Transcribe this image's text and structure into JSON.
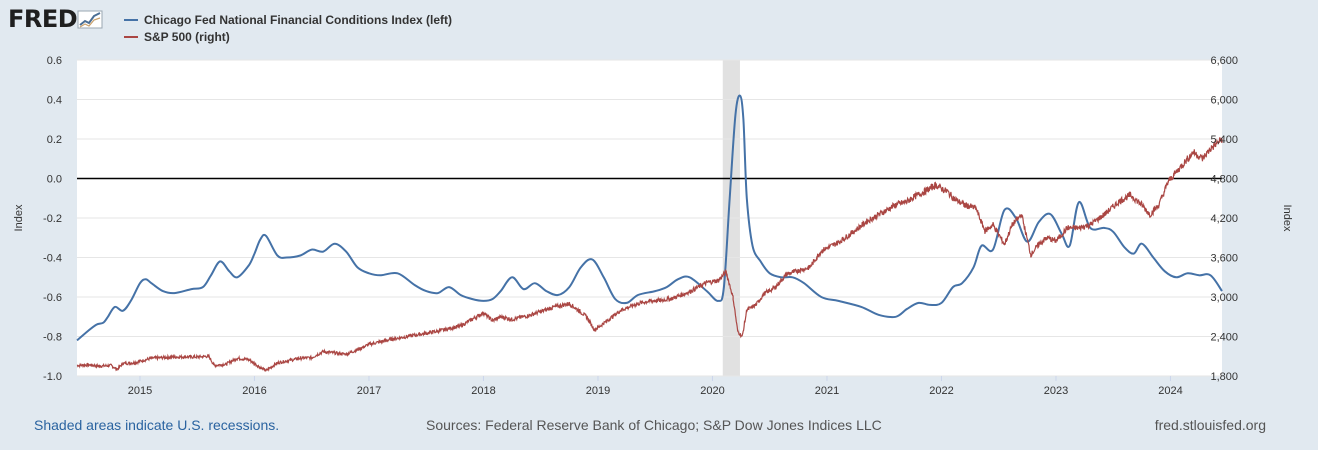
{
  "header": {
    "logo_text": "FRED",
    "logo_icon": "chart-trend-icon"
  },
  "colors": {
    "blue_series": "#4572a7",
    "red_series": "#aa4643",
    "recession_shade": "#e1e1e1",
    "zero_line": "#000000"
  },
  "legend": {
    "items": [
      {
        "label": "Chicago Fed National Financial Conditions Index (left)",
        "color": "#4572a7"
      },
      {
        "label": "S&P 500 (right)",
        "color": "#aa4643"
      }
    ]
  },
  "footer": {
    "recession_note": "Shaded areas indicate U.S. recessions.",
    "sources": "Sources: Federal Reserve Bank of Chicago; S&P Dow Jones Indices LLC",
    "site": "fred.stlouisfed.org"
  },
  "chart_data": {
    "type": "line",
    "x_range": [
      2014.45,
      2024.45
    ],
    "x_tick_labels": [
      "2015",
      "2016",
      "2017",
      "2018",
      "2019",
      "2020",
      "2021",
      "2022",
      "2023",
      "2024"
    ],
    "x_tick_values": [
      2015,
      2016,
      2017,
      2018,
      2019,
      2020,
      2021,
      2022,
      2023,
      2024
    ],
    "left_axis": {
      "label": "Index",
      "range": [
        -1.0,
        0.6
      ],
      "tick_values": [
        0.6,
        0.4,
        0.2,
        0.0,
        -0.2,
        -0.4,
        -0.6,
        -0.8,
        -1.0
      ],
      "tick_labels": [
        "0.6",
        "0.4",
        "0.2",
        "0.0",
        "-0.2",
        "-0.4",
        "-0.6",
        "-0.8",
        "-1.0"
      ]
    },
    "right_axis": {
      "label": "Index",
      "range": [
        1800,
        6600
      ],
      "tick_values": [
        6600,
        6000,
        5400,
        4800,
        4200,
        3600,
        3000,
        2400,
        1800
      ],
      "tick_labels": [
        "6,600",
        "6,000",
        "5,400",
        "4,800",
        "4,200",
        "3,600",
        "3,000",
        "2,400",
        "1,800"
      ]
    },
    "recessions": [
      [
        2020.09,
        2020.24
      ]
    ],
    "reference_line": {
      "axis": "left",
      "value": 0.0
    },
    "series": [
      {
        "name": "Chicago Fed National Financial Conditions Index (left)",
        "axis": "left",
        "x": [
          2014.45,
          2014.55,
          2014.62,
          2014.68,
          2014.72,
          2014.78,
          2014.85,
          2014.92,
          2015.0,
          2015.05,
          2015.1,
          2015.2,
          2015.3,
          2015.45,
          2015.55,
          2015.62,
          2015.7,
          2015.78,
          2015.85,
          2015.95,
          2016.0,
          2016.05,
          2016.1,
          2016.2,
          2016.28,
          2016.4,
          2016.5,
          2016.6,
          2016.7,
          2016.8,
          2016.9,
          2017.0,
          2017.1,
          2017.25,
          2017.4,
          2017.5,
          2017.6,
          2017.7,
          2017.8,
          2017.9,
          2018.0,
          2018.08,
          2018.15,
          2018.25,
          2018.35,
          2018.45,
          2018.55,
          2018.65,
          2018.75,
          2018.85,
          2018.95,
          2019.05,
          2019.15,
          2019.25,
          2019.35,
          2019.5,
          2019.6,
          2019.7,
          2019.8,
          2019.95,
          2020.05,
          2020.1,
          2020.15,
          2020.2,
          2020.24,
          2020.27,
          2020.3,
          2020.35,
          2020.42,
          2020.5,
          2020.6,
          2020.7,
          2020.8,
          2020.95,
          2021.1,
          2021.3,
          2021.45,
          2021.6,
          2021.7,
          2021.8,
          2021.9,
          2022.0,
          2022.1,
          2022.18,
          2022.28,
          2022.35,
          2022.45,
          2022.55,
          2022.65,
          2022.75,
          2022.85,
          2022.95,
          2023.05,
          2023.12,
          2023.2,
          2023.3,
          2023.42,
          2023.5,
          2023.6,
          2023.68,
          2023.75,
          2023.85,
          2023.95,
          2024.05,
          2024.15,
          2024.25,
          2024.35,
          2024.45
        ],
        "values": [
          -0.82,
          -0.77,
          -0.74,
          -0.73,
          -0.7,
          -0.65,
          -0.67,
          -0.62,
          -0.53,
          -0.51,
          -0.53,
          -0.57,
          -0.58,
          -0.56,
          -0.55,
          -0.49,
          -0.42,
          -0.47,
          -0.5,
          -0.44,
          -0.38,
          -0.31,
          -0.29,
          -0.39,
          -0.4,
          -0.39,
          -0.36,
          -0.37,
          -0.33,
          -0.37,
          -0.45,
          -0.48,
          -0.49,
          -0.48,
          -0.54,
          -0.57,
          -0.58,
          -0.55,
          -0.59,
          -0.61,
          -0.62,
          -0.61,
          -0.57,
          -0.5,
          -0.56,
          -0.53,
          -0.57,
          -0.59,
          -0.55,
          -0.45,
          -0.41,
          -0.5,
          -0.61,
          -0.63,
          -0.59,
          -0.57,
          -0.55,
          -0.51,
          -0.5,
          -0.57,
          -0.62,
          -0.55,
          -0.1,
          0.32,
          0.42,
          0.3,
          -0.1,
          -0.34,
          -0.42,
          -0.48,
          -0.5,
          -0.5,
          -0.53,
          -0.6,
          -0.62,
          -0.65,
          -0.69,
          -0.7,
          -0.66,
          -0.63,
          -0.64,
          -0.63,
          -0.55,
          -0.53,
          -0.45,
          -0.34,
          -0.36,
          -0.16,
          -0.2,
          -0.32,
          -0.22,
          -0.18,
          -0.28,
          -0.34,
          -0.12,
          -0.25,
          -0.25,
          -0.27,
          -0.35,
          -0.38,
          -0.33,
          -0.4,
          -0.47,
          -0.5,
          -0.48,
          -0.49,
          -0.49,
          -0.57
        ]
      },
      {
        "name": "S&P 500 (right)",
        "axis": "right",
        "x": [
          2014.45,
          2014.55,
          2014.65,
          2014.75,
          2014.8,
          2014.85,
          2014.95,
          2015.1,
          2015.3,
          2015.5,
          2015.6,
          2015.65,
          2015.75,
          2015.85,
          2015.95,
          2016.05,
          2016.1,
          2016.2,
          2016.4,
          2016.5,
          2016.6,
          2016.8,
          2016.9,
          2017.0,
          2017.2,
          2017.4,
          2017.6,
          2017.8,
          2018.0,
          2018.08,
          2018.15,
          2018.25,
          2018.4,
          2018.6,
          2018.75,
          2018.85,
          2018.9,
          2018.97,
          2019.05,
          2019.2,
          2019.35,
          2019.45,
          2019.55,
          2019.65,
          2019.8,
          2019.95,
          2020.05,
          2020.12,
          2020.18,
          2020.22,
          2020.26,
          2020.3,
          2020.38,
          2020.45,
          2020.55,
          2020.65,
          2020.75,
          2020.85,
          2020.95,
          2021.1,
          2021.2,
          2021.35,
          2021.5,
          2021.6,
          2021.7,
          2021.75,
          2021.85,
          2021.95,
          2022.05,
          2022.12,
          2022.2,
          2022.3,
          2022.38,
          2022.45,
          2022.55,
          2022.62,
          2022.7,
          2022.78,
          2022.85,
          2022.92,
          2023.0,
          2023.1,
          2023.2,
          2023.3,
          2023.42,
          2023.55,
          2023.65,
          2023.75,
          2023.82,
          2023.9,
          2023.98,
          2024.1,
          2024.2,
          2024.28,
          2024.35,
          2024.45
        ],
        "values": [
          1960,
          1970,
          1950,
          1960,
          1900,
          1990,
          2000,
          2070,
          2090,
          2090,
          2100,
          1960,
          1980,
          2070,
          2050,
          1930,
          1880,
          2000,
          2070,
          2080,
          2170,
          2130,
          2200,
          2280,
          2360,
          2420,
          2480,
          2560,
          2760,
          2640,
          2700,
          2660,
          2720,
          2840,
          2900,
          2770,
          2700,
          2500,
          2600,
          2800,
          2900,
          2940,
          2950,
          2980,
          3080,
          3220,
          3250,
          3380,
          2990,
          2480,
          2400,
          2800,
          2880,
          3050,
          3150,
          3350,
          3400,
          3450,
          3700,
          3830,
          3950,
          4150,
          4300,
          4400,
          4450,
          4510,
          4600,
          4700,
          4600,
          4480,
          4400,
          4350,
          4000,
          4100,
          3800,
          4100,
          4250,
          3640,
          3800,
          3900,
          3850,
          4050,
          4050,
          4100,
          4250,
          4450,
          4550,
          4400,
          4250,
          4400,
          4750,
          5000,
          5200,
          5100,
          5250,
          5400
        ]
      }
    ]
  }
}
